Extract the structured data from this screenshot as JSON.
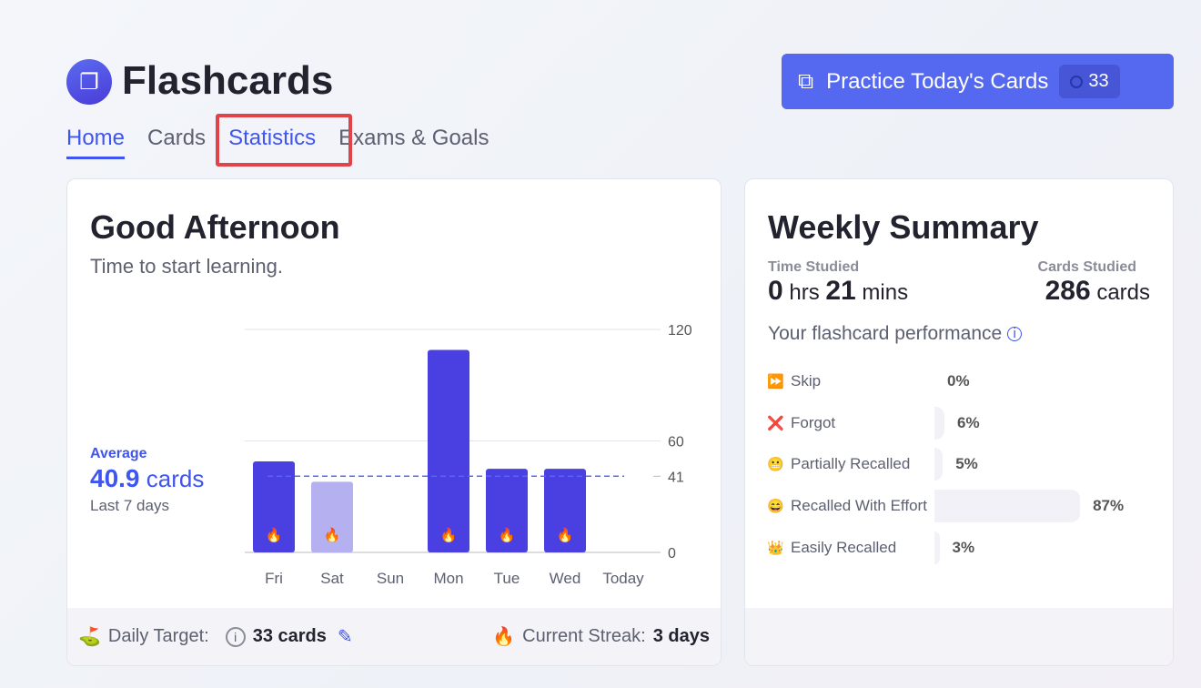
{
  "app": {
    "title": "Flashcards",
    "logo_icon": "cards-icon"
  },
  "nav": {
    "tabs": [
      {
        "label": "Home"
      },
      {
        "label": "Cards"
      },
      {
        "label": "Statistics"
      },
      {
        "label": "Exams & Goals"
      }
    ]
  },
  "practice": {
    "label": "Practice Today's Cards",
    "count": "33"
  },
  "greeting": {
    "title": "Good Afternoon",
    "subtitle": "Time to start learning."
  },
  "average": {
    "label": "Average",
    "value": "40.9",
    "unit": "cards",
    "period": "Last 7 days"
  },
  "chart_data": {
    "type": "bar",
    "categories": [
      "Fri",
      "Sat",
      "Sun",
      "Mon",
      "Tue",
      "Wed",
      "Today"
    ],
    "values": [
      49,
      38,
      0,
      109,
      45,
      45,
      0
    ],
    "streak": [
      true,
      true,
      false,
      true,
      true,
      true,
      false
    ],
    "highlighted": [
      false,
      true,
      false,
      false,
      false,
      false,
      false
    ],
    "average": 41,
    "yticks": [
      "120",
      "60",
      "41",
      "0"
    ],
    "ylim": [
      0,
      120
    ],
    "colors": {
      "bar": "#4a3fe0",
      "bar_light": "#b5b0ef",
      "avg_line": "#5468f0"
    }
  },
  "footer": {
    "target_label": "Daily Target:",
    "target_value": "33 cards",
    "streak_label": "Current Streak:",
    "streak_value": "3 days"
  },
  "weekly": {
    "title": "Weekly Summary",
    "time_label": "Time Studied",
    "time_hrs": "0",
    "hrs_unit": "hrs",
    "time_mins": "21",
    "mins_unit": "mins",
    "cards_label": "Cards Studied",
    "cards_value": "286",
    "cards_unit": "cards",
    "perf_label": "Your flashcard performance",
    "performance": [
      {
        "emoji": "⏩",
        "label": "Skip",
        "pct": 0,
        "text": "0%"
      },
      {
        "emoji": "❌",
        "label": "Forgot",
        "pct": 6,
        "text": "6%"
      },
      {
        "emoji": "😬",
        "label": "Partially Recalled",
        "pct": 5,
        "text": "5%"
      },
      {
        "emoji": "😄",
        "label": "Recalled With Effort",
        "pct": 87,
        "text": "87%"
      },
      {
        "emoji": "👑",
        "label": "Easily Recalled",
        "pct": 3,
        "text": "3%"
      }
    ]
  }
}
